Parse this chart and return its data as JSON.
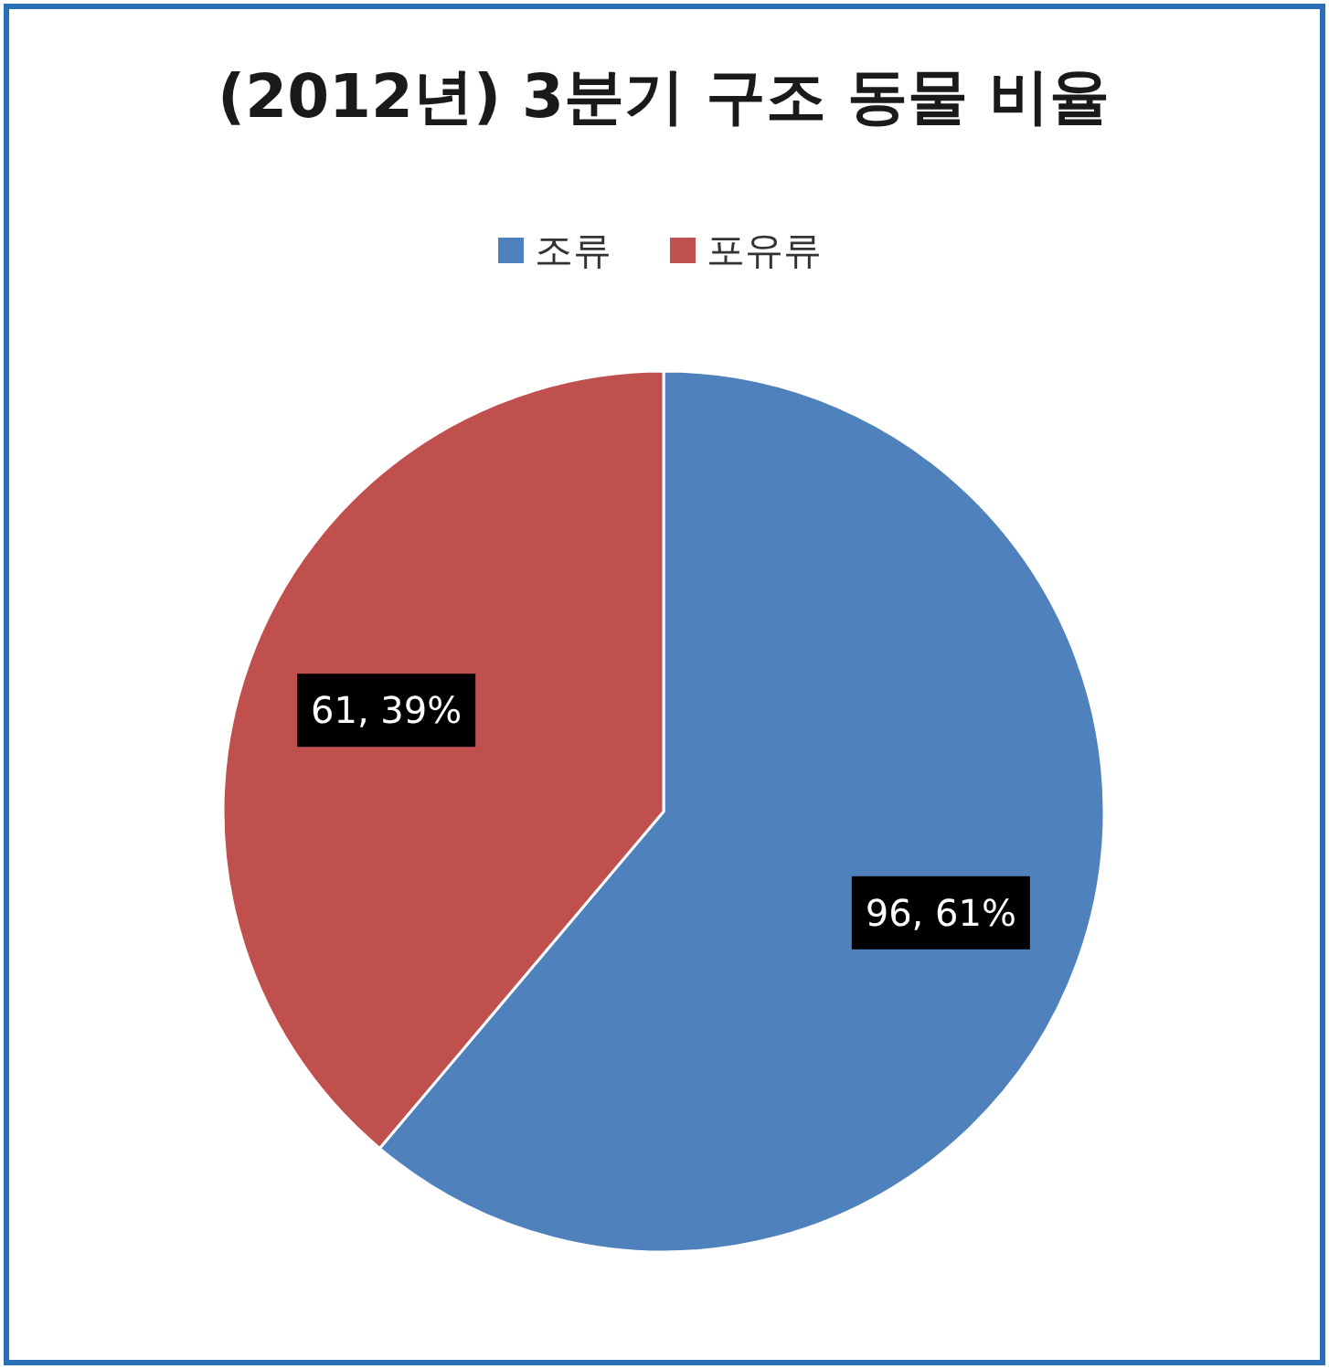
{
  "chart_data": {
    "type": "pie",
    "title": "(2012년) 3분기 구조 동물 비율",
    "categories": [
      "조류",
      "포유류"
    ],
    "values": [
      96,
      61
    ],
    "colors": [
      "#4f81bd",
      "#c0504d"
    ],
    "value_labels": [
      "96, 61%",
      "61, 39%"
    ],
    "legend": "top"
  }
}
